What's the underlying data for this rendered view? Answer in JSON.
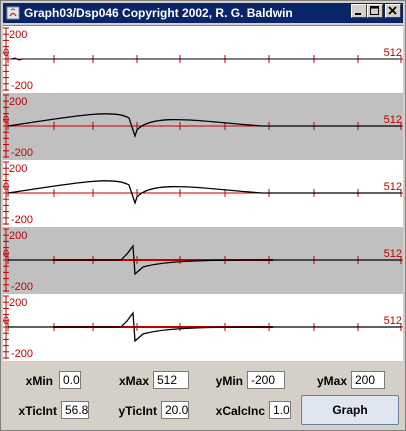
{
  "window": {
    "title": "Graph03/Dsp046 Copyright 2002, R. G. Baldwin"
  },
  "window_controls": [
    "minimize",
    "maximize",
    "close"
  ],
  "plots": [
    {
      "background": "#ffffff",
      "ytop_label": "200",
      "ybottom_label": "-200",
      "left_zero_label": "0",
      "right_label": "512",
      "trace": "flat"
    },
    {
      "background": "#c0c0c0",
      "ytop_label": "200",
      "ybottom_label": "-200",
      "left_zero_label": "0",
      "right_label": "512",
      "trace": "hump"
    },
    {
      "background": "#ffffff",
      "ytop_label": "200",
      "ybottom_label": "-200",
      "left_zero_label": "0",
      "right_label": "512",
      "trace": "hump"
    },
    {
      "background": "#c0c0c0",
      "ytop_label": "200",
      "ybottom_label": "-200",
      "left_zero_label": "0",
      "right_label": "512",
      "trace": "step"
    },
    {
      "background": "#ffffff",
      "ytop_label": "200",
      "ybottom_label": "-200",
      "left_zero_label": "0",
      "right_label": "512",
      "trace": "step"
    }
  ],
  "colors": {
    "axis": "#c00000",
    "trace": "#000000",
    "title_bar": "#0a246a"
  },
  "controls": {
    "xMin": {
      "label": "xMin",
      "value": "0.0"
    },
    "xMax": {
      "label": "xMax",
      "value": "512"
    },
    "yMin": {
      "label": "yMin",
      "value": "-200"
    },
    "yMax": {
      "label": "yMax",
      "value": "200"
    },
    "xTicInt": {
      "label": "xTicInt",
      "value": "56.8"
    },
    "yTicInt": {
      "label": "yTicInt",
      "value": "20.0"
    },
    "xCalcInc": {
      "label": "xCalcInc",
      "value": "1.0"
    },
    "graph_button": "Graph"
  }
}
